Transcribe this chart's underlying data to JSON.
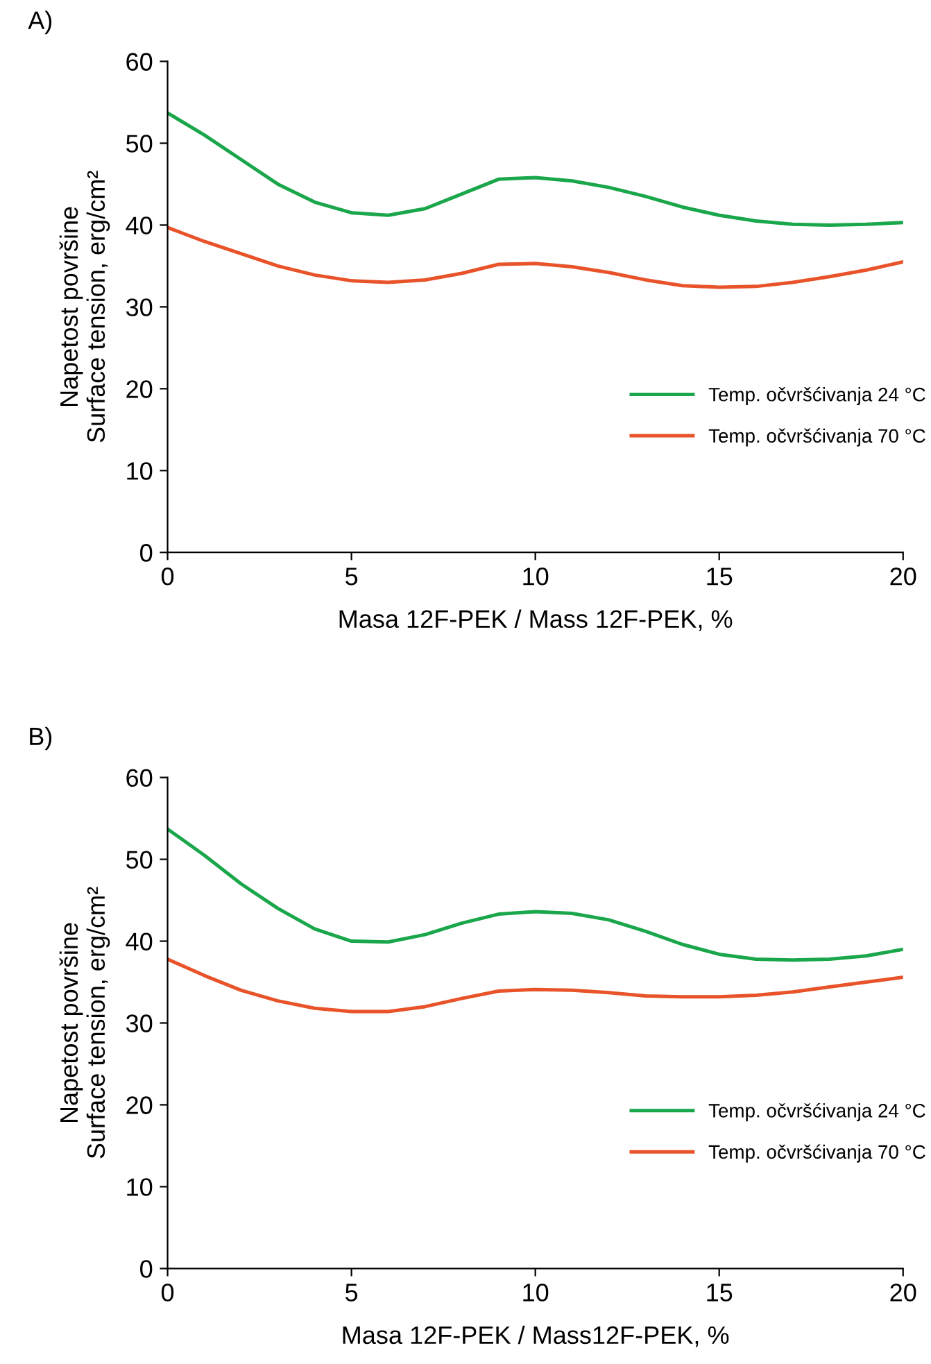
{
  "chart_data": [
    {
      "type": "line",
      "title": "A)",
      "xlabel": "Masa 12F-PEK / Mass 12F-PEK, %",
      "ylabel": "Napetost površine\nSurface tension, erg/cm²",
      "x": [
        0,
        1,
        2,
        3,
        4,
        5,
        6,
        7,
        8,
        9,
        10,
        11,
        12,
        13,
        14,
        15,
        16,
        17,
        18,
        19,
        20
      ],
      "series": [
        {
          "name": "Temp. očvršćivanja 24 °C",
          "color": "#1aa64a",
          "values": [
            53.7,
            51,
            48,
            45,
            42.8,
            41.5,
            41.2,
            42,
            43.8,
            45.6,
            45.8,
            45.4,
            44.6,
            43.5,
            42.2,
            41.2,
            40.5,
            40.1,
            40,
            40.1,
            40.3
          ]
        },
        {
          "name": "Temp. očvršćivanja 70 °C",
          "color": "#e8532a",
          "values": [
            39.7,
            38,
            36.5,
            35,
            33.9,
            33.2,
            33,
            33.3,
            34.1,
            35.2,
            35.3,
            34.9,
            34.2,
            33.3,
            32.6,
            32.4,
            32.5,
            33,
            33.7,
            34.5,
            35.5
          ]
        }
      ],
      "xlim": [
        0,
        20
      ],
      "xticks": [
        0,
        5,
        10,
        15,
        20
      ],
      "ylim": [
        0,
        60
      ],
      "yticks": [
        0,
        10,
        20,
        30,
        40,
        50,
        60
      ],
      "grid": false,
      "legend": "right",
      "marker": "none",
      "line_style": "solid"
    },
    {
      "type": "line",
      "title": "B)",
      "xlabel": "Masa 12F-PEK / Mass12F-PEK, %",
      "ylabel": "Napetost površine\nSurface tension, erg/cm²",
      "x": [
        0,
        1,
        2,
        3,
        4,
        5,
        6,
        7,
        8,
        9,
        10,
        11,
        12,
        13,
        14,
        15,
        16,
        17,
        18,
        19,
        20
      ],
      "series": [
        {
          "name": "Temp. očvršćivanja 24 °C",
          "color": "#1aa64a",
          "values": [
            53.7,
            50.5,
            47,
            44,
            41.5,
            40,
            39.9,
            40.8,
            42.2,
            43.3,
            43.6,
            43.4,
            42.6,
            41.2,
            39.6,
            38.4,
            37.8,
            37.7,
            37.8,
            38.2,
            39
          ]
        },
        {
          "name": "Temp. očvršćivanja 70 °C",
          "color": "#e8532a",
          "values": [
            37.8,
            35.8,
            34,
            32.7,
            31.8,
            31.4,
            31.4,
            32,
            33,
            33.9,
            34.1,
            34,
            33.7,
            33.3,
            33.2,
            33.2,
            33.4,
            33.8,
            34.4,
            35,
            35.6
          ]
        }
      ],
      "xlim": [
        0,
        20
      ],
      "xticks": [
        0,
        5,
        10,
        15,
        20
      ],
      "ylim": [
        0,
        60
      ],
      "yticks": [
        0,
        10,
        20,
        30,
        40,
        50,
        60
      ],
      "grid": false,
      "legend": "right",
      "marker": "none",
      "line_style": "solid"
    }
  ]
}
